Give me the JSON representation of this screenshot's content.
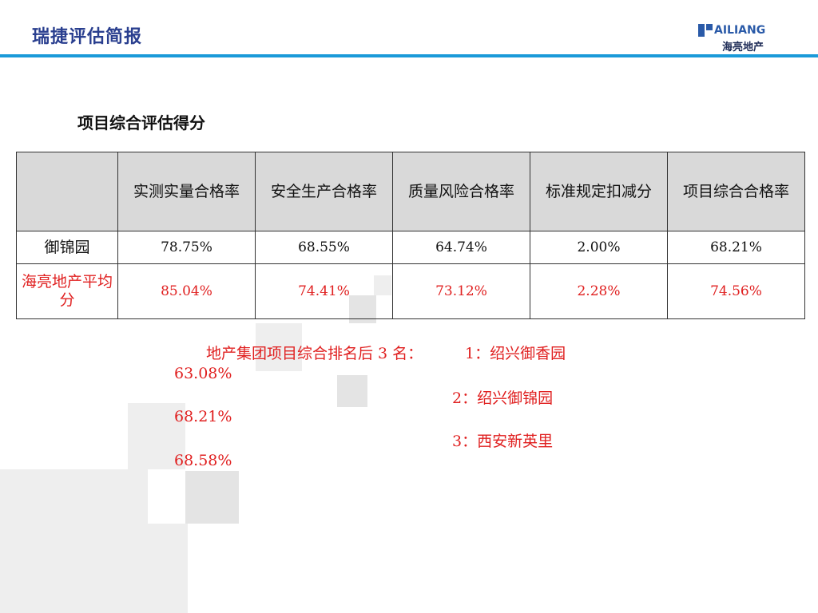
{
  "header": {
    "title": "瑞捷评估简报",
    "logo_en": "AILIANG",
    "logo_cn": "海亮地产",
    "accent_color": "#1a9ad9"
  },
  "section_title": "项目综合评估得分",
  "table": {
    "headers": [
      "",
      "实测实量合格率",
      "安全生产合格率",
      "质量风险合格率",
      "标准规定扣减分",
      "项目综合合格率"
    ],
    "rows": [
      {
        "label": "御锦园",
        "values": [
          "78.75%",
          "68.55%",
          "64.74%",
          "2.00%",
          "68.21%"
        ]
      },
      {
        "label": "海亮地产平均分",
        "values": [
          "85.04%",
          "74.41%",
          "73.12%",
          "2.28%",
          "74.56%"
        ]
      }
    ],
    "highlight_color": "#e02020"
  },
  "ranking": {
    "intro": "地产集团项目综合排名后 3 名：",
    "items": [
      {
        "rank": "1：绍兴御香园",
        "score": "63.08%"
      },
      {
        "rank": "2：绍兴御锦园",
        "score": "68.21%"
      },
      {
        "rank": "3：西安新英里",
        "score": "68.58%"
      }
    ]
  }
}
